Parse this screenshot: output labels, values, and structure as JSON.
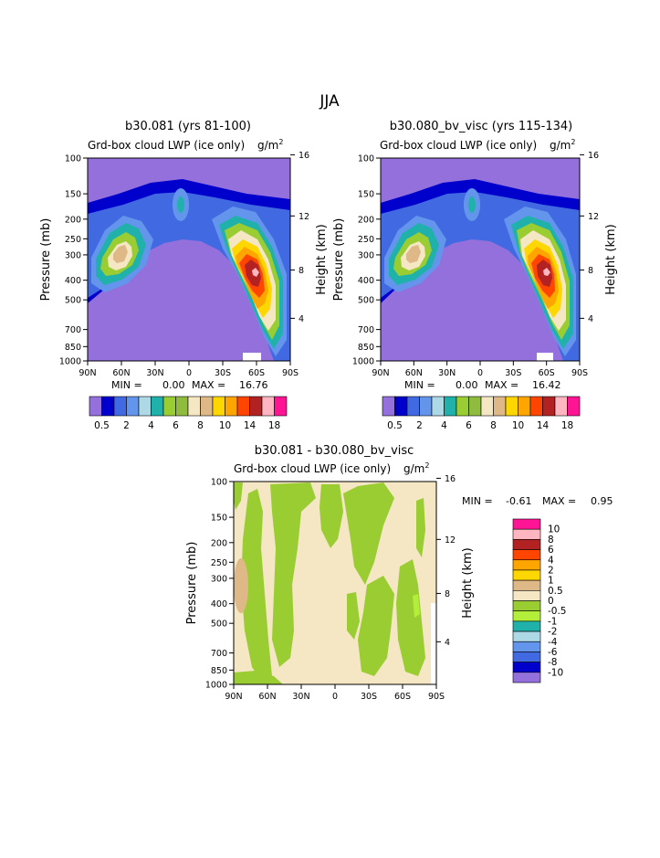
{
  "page_title": "JJA",
  "chart_data": [
    {
      "type": "heatmap",
      "title": "b30.081 (yrs 81-100)",
      "subtitle": "Grd-box cloud LWP (ice only)",
      "units": "g/m",
      "units_exp": "2",
      "ylabel_left": "Pressure (mb)",
      "ylabel_right": "Height (km)",
      "x_ticks": [
        "90N",
        "60N",
        "30N",
        "0",
        "30S",
        "60S",
        "90S"
      ],
      "y_ticks": [
        "100",
        "150",
        "200",
        "250",
        "300",
        "400",
        "500",
        "700",
        "850",
        "1000"
      ],
      "height_ticks": [
        "16",
        "12",
        "8",
        "4"
      ],
      "min_label": "MIN =",
      "min_value": "0.00",
      "max_label": "MAX =",
      "max_value": "16.76",
      "colorbar_labels": [
        "0.5",
        "2",
        "4",
        "6",
        "8",
        "10",
        "14",
        "18"
      ]
    },
    {
      "type": "heatmap",
      "title": "b30.080_bv_visc (yrs 115-134)",
      "subtitle": "Grd-box cloud LWP (ice only)",
      "units": "g/m",
      "units_exp": "2",
      "ylabel_left": "Pressure (mb)",
      "ylabel_right": "Height (km)",
      "x_ticks": [
        "90N",
        "60N",
        "30N",
        "0",
        "30S",
        "60S",
        "90S"
      ],
      "y_ticks": [
        "100",
        "150",
        "200",
        "250",
        "300",
        "400",
        "500",
        "700",
        "850",
        "1000"
      ],
      "height_ticks": [
        "16",
        "12",
        "8",
        "4"
      ],
      "min_label": "MIN =",
      "min_value": "0.00",
      "max_label": "MAX =",
      "max_value": "16.42",
      "colorbar_labels": [
        "0.5",
        "2",
        "4",
        "6",
        "8",
        "10",
        "14",
        "18"
      ]
    },
    {
      "type": "heatmap",
      "title": "b30.081 - b30.080_bv_visc",
      "subtitle": "Grd-box cloud LWP (ice only)",
      "units": "g/m",
      "units_exp": "2",
      "ylabel_left": "Pressure (mb)",
      "ylabel_right": "Height (km)",
      "x_ticks": [
        "90N",
        "60N",
        "30N",
        "0",
        "30S",
        "60S",
        "90S"
      ],
      "y_ticks": [
        "100",
        "150",
        "200",
        "250",
        "300",
        "400",
        "500",
        "700",
        "850",
        "1000"
      ],
      "height_ticks": [
        "16",
        "12",
        "8",
        "4"
      ],
      "min_label": "MIN =",
      "min_value": "-0.61",
      "max_label": "MAX =",
      "max_value": "0.95",
      "colorbar_labels": [
        "10",
        "8",
        "6",
        "4",
        "2",
        "1",
        "0.5",
        "0",
        "-0.5",
        "-1",
        "-2",
        "-4",
        "-6",
        "-8",
        "-10"
      ]
    }
  ],
  "colors": {
    "abs_scale": [
      "#9370db",
      "#0000cd",
      "#4169e1",
      "#6495ed",
      "#add8e6",
      "#20b2aa",
      "#9acd32",
      "#8fbc3f",
      "#f5e6c4",
      "#deb887",
      "#ffd700",
      "#ffa500",
      "#ff4500",
      "#b22222",
      "#ffb6c1",
      "#ff1493"
    ],
    "diff_scale": [
      "#ff1493",
      "#ffb6c1",
      "#b22222",
      "#ff4500",
      "#ffa500",
      "#ffd700",
      "#deb887",
      "#f5e6c4",
      "#9acd32",
      "#b3ee3a",
      "#20b2aa",
      "#add8e6",
      "#6495ed",
      "#4169e1",
      "#0000cd",
      "#9370db"
    ]
  }
}
